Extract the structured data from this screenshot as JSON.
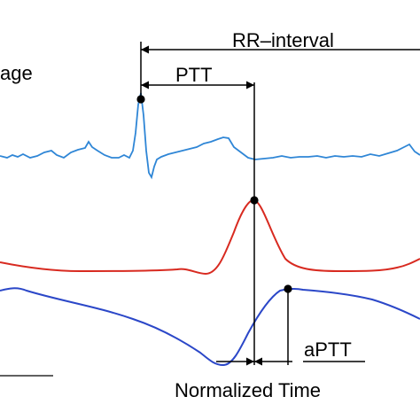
{
  "labels": {
    "rr_interval": "RR–interval",
    "ptt": "PTT",
    "aptt": "aPTT",
    "voltage_partial": "age",
    "x_axis": "Normalized Time"
  },
  "colors": {
    "ecg": "#2f86d6",
    "ppg": "#d82a20",
    "abp": "#2b47c8",
    "annotation": "#000000"
  }
}
